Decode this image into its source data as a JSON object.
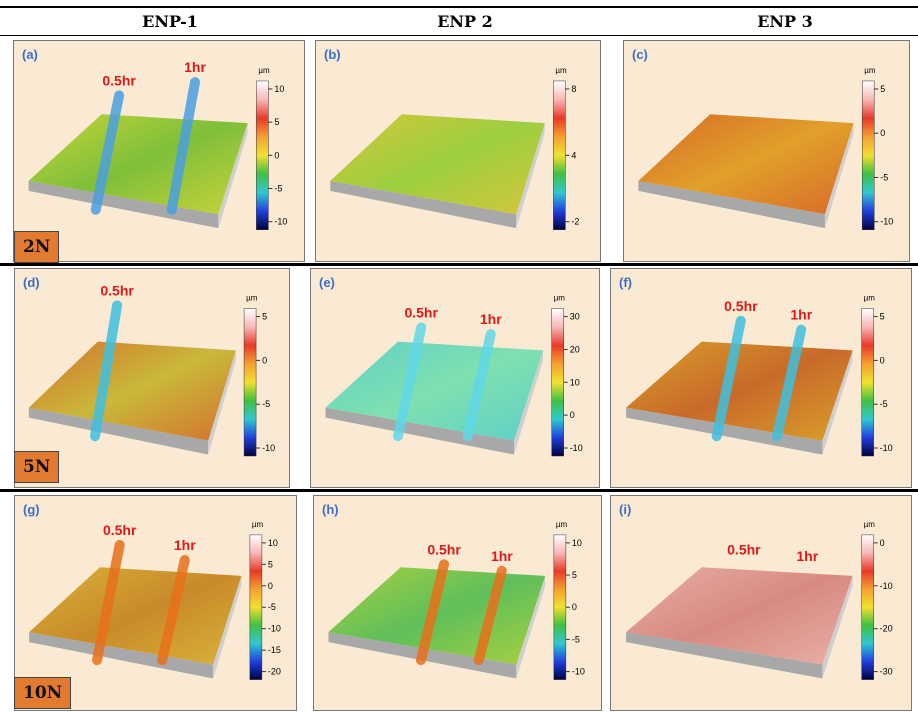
{
  "header": {
    "columns": [
      "ENP-1",
      "ENP 2",
      "ENP 3"
    ]
  },
  "rows": [
    {
      "label": "2N",
      "panels": [
        {
          "letter": "(a)",
          "unit": "µm",
          "ticks": [
            10,
            5,
            0,
            -5,
            -10
          ],
          "annotations": [
            "0.5hr",
            "1hr"
          ]
        },
        {
          "letter": "(b)",
          "unit": "µm",
          "ticks": [
            8,
            4,
            -2
          ],
          "annotations": []
        },
        {
          "letter": "(c)",
          "unit": "µm",
          "ticks": [
            5,
            0,
            -5,
            -10
          ],
          "annotations": []
        }
      ]
    },
    {
      "label": "5N",
      "panels": [
        {
          "letter": "(d)",
          "unit": "µm",
          "ticks": [
            5,
            0,
            -5,
            -10
          ],
          "annotations": [
            "0.5hr"
          ]
        },
        {
          "letter": "(e)",
          "unit": "µm",
          "ticks": [
            30,
            20,
            10,
            0,
            -10
          ],
          "annotations": [
            "0.5hr",
            "1hr"
          ]
        },
        {
          "letter": "(f)",
          "unit": "µm",
          "ticks": [
            5,
            0,
            -5,
            -10
          ],
          "annotations": [
            "0.5hr",
            "1hr"
          ]
        }
      ]
    },
    {
      "label": "10N",
      "panels": [
        {
          "letter": "(g)",
          "unit": "µm",
          "ticks": [
            10,
            5,
            0,
            -5,
            -10,
            -15,
            -20
          ],
          "annotations": [
            "0.5hr",
            "1hr"
          ]
        },
        {
          "letter": "(h)",
          "unit": "µm",
          "ticks": [
            10,
            5,
            0,
            -5,
            -10
          ],
          "annotations": [
            "0.5hr",
            "1hr"
          ]
        },
        {
          "letter": "(i)",
          "unit": "µm",
          "ticks": [
            0,
            -10,
            -20,
            -30
          ],
          "annotations": [
            "0.5hr",
            "1hr"
          ]
        }
      ]
    }
  ]
}
